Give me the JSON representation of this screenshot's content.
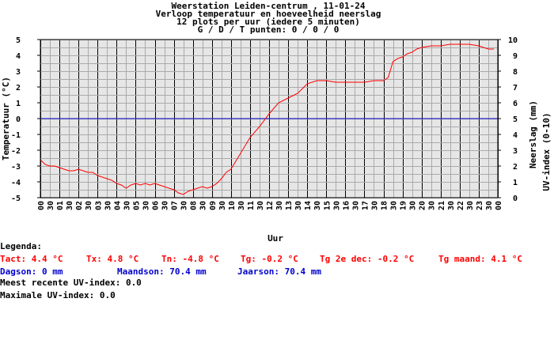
{
  "chart_data": {
    "type": "line",
    "title": [
      "Weerstation Leiden-centrum , 11-01-24",
      "Verloop temperatuur en hoeveelheid neerslag",
      "12 plots per uur (iedere 5 minuten)",
      "G / D / T punten: 0 / 0 / 0"
    ],
    "xlabel": "Uur",
    "ylabel_left": "Temperatuur (°C)",
    "ylabel_right": [
      "Neerslag (mm)",
      "UV-index (0-10)"
    ],
    "ylim_left": [
      -5,
      5
    ],
    "ylim_right": [
      0,
      10
    ],
    "xlim_hours": [
      0,
      24
    ],
    "x_tick_labels": [
      "00",
      "30",
      "01",
      "30",
      "02",
      "30",
      "03",
      "30",
      "04",
      "30",
      "05",
      "30",
      "06",
      "30",
      "07",
      "30",
      "08",
      "30",
      "09",
      "30",
      "10",
      "30",
      "11",
      "30",
      "12",
      "30",
      "13",
      "30",
      "14",
      "30",
      "15",
      "30",
      "16",
      "30",
      "17",
      "30",
      "18",
      "30",
      "19",
      "30",
      "20",
      "30",
      "21",
      "30",
      "22",
      "30",
      "23",
      "30",
      "00"
    ],
    "y_tick_labels_left": [
      "5",
      "4",
      "3",
      "2",
      "1",
      "0",
      "-1",
      "-2",
      "-3",
      "-4",
      "-5"
    ],
    "y_tick_labels_right": [
      "10",
      "9",
      "8",
      "7",
      "6",
      "5",
      "4",
      "3",
      "2",
      "1",
      "0"
    ],
    "grid": true,
    "colors": {
      "temperature": "#ff0000",
      "zero_line": "#0000cc",
      "grid_minor": "#aaaaaa",
      "grid_major": "#000000",
      "plot_bg": "#e6e6e6"
    },
    "series": [
      {
        "name": "Temperatuur",
        "x": [
          0,
          0.25,
          0.5,
          0.75,
          1.0,
          1.25,
          1.5,
          1.75,
          2.0,
          2.25,
          2.5,
          2.75,
          3.0,
          3.25,
          3.5,
          3.75,
          4.0,
          4.25,
          4.5,
          4.75,
          5.0,
          5.25,
          5.5,
          5.75,
          6.0,
          6.25,
          6.5,
          6.75,
          7.0,
          7.25,
          7.5,
          7.75,
          8.0,
          8.25,
          8.5,
          8.75,
          9.0,
          9.25,
          9.5,
          9.75,
          10.0,
          10.5,
          11.0,
          11.5,
          12.0,
          12.5,
          13.0,
          13.5,
          14.0,
          14.5,
          15.0,
          15.5,
          16.0,
          16.5,
          17.0,
          17.5,
          18.0,
          18.25,
          18.5,
          18.75,
          19.0,
          19.25,
          19.5,
          19.75,
          20.0,
          20.5,
          21.0,
          21.5,
          22.0,
          22.5,
          23.0,
          23.5,
          23.8
        ],
        "values": [
          -2.6,
          -2.9,
          -3.0,
          -3.0,
          -3.1,
          -3.2,
          -3.3,
          -3.3,
          -3.2,
          -3.3,
          -3.4,
          -3.4,
          -3.6,
          -3.7,
          -3.8,
          -3.9,
          -4.1,
          -4.2,
          -4.4,
          -4.2,
          -4.1,
          -4.2,
          -4.1,
          -4.2,
          -4.1,
          -4.2,
          -4.3,
          -4.4,
          -4.5,
          -4.7,
          -4.8,
          -4.6,
          -4.5,
          -4.4,
          -4.3,
          -4.4,
          -4.3,
          -4.1,
          -3.8,
          -3.4,
          -3.2,
          -2.2,
          -1.2,
          -0.5,
          0.3,
          1.0,
          1.3,
          1.6,
          2.2,
          2.4,
          2.4,
          2.3,
          2.3,
          2.3,
          2.3,
          2.4,
          2.4,
          2.6,
          3.6,
          3.8,
          3.9,
          4.1,
          4.2,
          4.4,
          4.5,
          4.6,
          4.6,
          4.7,
          4.7,
          4.7,
          4.6,
          4.4,
          4.4
        ]
      }
    ]
  },
  "legend": {
    "heading": "Legenda:",
    "tact": "Tact: 4.4 °C",
    "tx": "Tx: 4.8 °C",
    "tn": "Tn: -4.8 °C",
    "tg": "Tg: -0.2 °C",
    "tg_dec": "Tg 2e dec: -0.2 °C",
    "tg_maand": "Tg maand: 4.1 °C",
    "dagson": "Dagson: 0 mm",
    "maandson": "Maandson: 70.4 mm",
    "jaarson": "Jaarson: 70.4 mm",
    "uv_recent": "Meest recente UV-index: 0.0",
    "uv_max": "Maximale UV-index: 0.0"
  }
}
